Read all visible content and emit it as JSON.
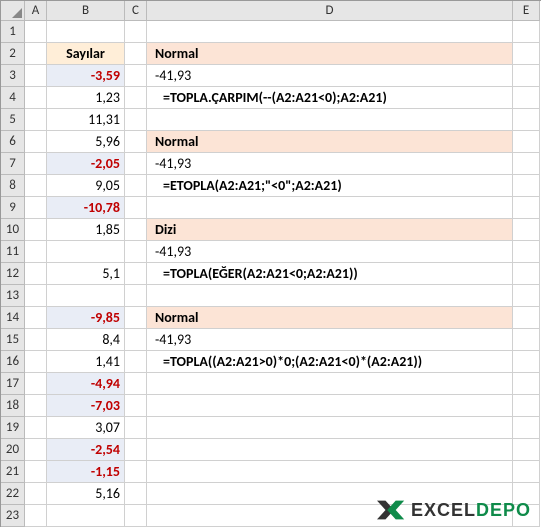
{
  "columns": [
    "A",
    "B",
    "C",
    "D",
    "E"
  ],
  "row_count": 23,
  "header_cell": {
    "row": 2,
    "col": "B",
    "text": "Sayılar"
  },
  "numbers": [
    {
      "row": 3,
      "value": "-3,59",
      "neg": true
    },
    {
      "row": 4,
      "value": "1,23",
      "neg": false
    },
    {
      "row": 5,
      "value": "11,31",
      "neg": false
    },
    {
      "row": 6,
      "value": "5,96",
      "neg": false
    },
    {
      "row": 7,
      "value": "-2,05",
      "neg": true
    },
    {
      "row": 8,
      "value": "9,05",
      "neg": false
    },
    {
      "row": 9,
      "value": "-10,78",
      "neg": true
    },
    {
      "row": 10,
      "value": "1,85",
      "neg": false
    },
    {
      "row": 12,
      "value": "5,1",
      "neg": false
    },
    {
      "row": 14,
      "value": "-9,85",
      "neg": true
    },
    {
      "row": 15,
      "value": "8,4",
      "neg": false
    },
    {
      "row": 16,
      "value": "1,41",
      "neg": false
    },
    {
      "row": 17,
      "value": "-4,94",
      "neg": true
    },
    {
      "row": 18,
      "value": "-7,03",
      "neg": true
    },
    {
      "row": 19,
      "value": "3,07",
      "neg": false
    },
    {
      "row": 20,
      "value": "-2,54",
      "neg": true
    },
    {
      "row": 21,
      "value": "-1,15",
      "neg": true
    },
    {
      "row": 22,
      "value": "5,16",
      "neg": false
    }
  ],
  "d_cells": [
    {
      "row": 2,
      "style": "hdrsection",
      "text": "Normal"
    },
    {
      "row": 3,
      "style": "result",
      "text": "-41,93"
    },
    {
      "row": 4,
      "style": "formula",
      "text": "=TOPLA.ÇARPIM(--(A2:A21<0);A2:A21)"
    },
    {
      "row": 6,
      "style": "hdrsection",
      "text": "Normal"
    },
    {
      "row": 7,
      "style": "result",
      "text": "-41,93"
    },
    {
      "row": 8,
      "style": "formula",
      "text": "=ETOPLA(A2:A21;\"<0\";A2:A21)"
    },
    {
      "row": 10,
      "style": "hdrsection",
      "text": "Dizi"
    },
    {
      "row": 11,
      "style": "result",
      "text": "-41,93"
    },
    {
      "row": 12,
      "style": "formula",
      "text": "=TOPLA(EĞER(A2:A21<0;A2:A21))"
    },
    {
      "row": 14,
      "style": "hdrsection",
      "text": "Normal"
    },
    {
      "row": 15,
      "style": "result",
      "text": "-41,93"
    },
    {
      "row": 16,
      "style": "formula",
      "text": "=TOPLA((A2:A21>0)*0;(A2:A21<0)*(A2:A21))"
    }
  ],
  "logo": {
    "text1": "EXCEL",
    "text2": "DEPO"
  },
  "colors": {
    "header_bg": "#e6e6e6",
    "neg_text": "#c00000",
    "neg_bg": "#e9edf6",
    "section_bg": "#fce4d6",
    "hdr_bg": "#ffeed8",
    "grid": "#d0d0d0",
    "logo_green": "#0f8b4a"
  }
}
